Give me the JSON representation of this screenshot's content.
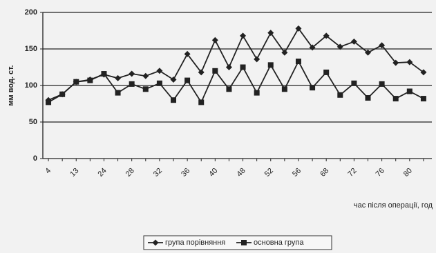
{
  "chart_data": {
    "type": "line",
    "y_label": "мм вод. ст.",
    "x_label": "час після операції, год",
    "categories": [
      "4",
      null,
      "13",
      null,
      "24",
      null,
      "28",
      null,
      "32",
      null,
      "36",
      null,
      "40",
      null,
      "48",
      null,
      "52",
      null,
      "56",
      null,
      "68",
      null,
      "72",
      null,
      "76",
      null,
      "80",
      null
    ],
    "series": [
      {
        "name": "група порівняння",
        "color": "#222222",
        "marker": "diamond",
        "values": [
          80,
          88,
          105,
          108,
          115,
          110,
          116,
          113,
          120,
          108,
          143,
          118,
          162,
          125,
          168,
          136,
          172,
          145,
          178,
          152,
          168,
          153,
          160,
          145,
          155,
          131,
          132,
          118
        ]
      },
      {
        "name": "основна група",
        "color": "#222222",
        "marker": "square",
        "values": [
          77,
          88,
          105,
          107,
          116,
          90,
          102,
          95,
          103,
          80,
          107,
          77,
          120,
          95,
          125,
          90,
          128,
          95,
          133,
          97,
          118,
          87,
          103,
          83,
          102,
          82,
          92,
          82
        ]
      }
    ],
    "ylim": [
      0,
      200
    ],
    "yticks": [
      0,
      50,
      100,
      150,
      200
    ],
    "grid": true
  }
}
